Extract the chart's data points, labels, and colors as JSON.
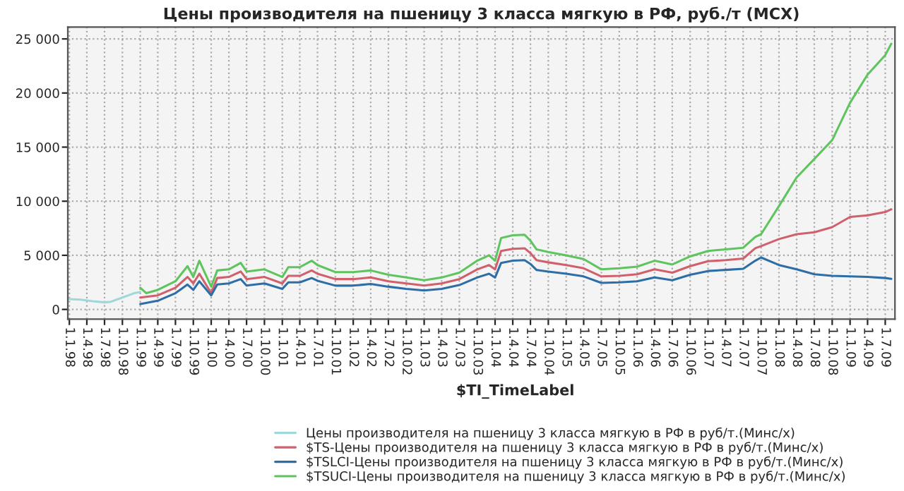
{
  "chart_data": {
    "type": "line",
    "title": "Цены производителя на пшеницу 3 класса мягкую в РФ, руб./т (МСХ)",
    "xlabel": "$TI_TimeLabel",
    "xlim": [
      "1997-12-24",
      "2009-08-20"
    ],
    "ylim": [
      -900,
      26100
    ],
    "yticks": [
      {
        "value": 0,
        "label": "0"
      },
      {
        "value": 5000,
        "label": "5 000"
      },
      {
        "value": 10000,
        "label": "10 000"
      },
      {
        "value": 15000,
        "label": "15 000"
      },
      {
        "value": 20000,
        "label": "20 000"
      },
      {
        "value": 25000,
        "label": "25 000"
      }
    ],
    "xticks": [
      {
        "value": "1998-01-01",
        "label": "1.1.98"
      },
      {
        "value": "1998-04-01",
        "label": "1.4.98"
      },
      {
        "value": "1998-07-01",
        "label": "1.7.98"
      },
      {
        "value": "1998-10-01",
        "label": "1.10.98"
      },
      {
        "value": "1999-01-01",
        "label": "1.1.99"
      },
      {
        "value": "1999-04-01",
        "label": "1.4.99"
      },
      {
        "value": "1999-07-01",
        "label": "1.7.99"
      },
      {
        "value": "1999-10-01",
        "label": "1.10.99"
      },
      {
        "value": "2000-01-01",
        "label": "1.1.00"
      },
      {
        "value": "2000-04-01",
        "label": "1.4.00"
      },
      {
        "value": "2000-07-01",
        "label": "1.7.00"
      },
      {
        "value": "2000-10-01",
        "label": "1.10.00"
      },
      {
        "value": "2001-01-01",
        "label": "1.1.01"
      },
      {
        "value": "2001-04-01",
        "label": "1.4.01"
      },
      {
        "value": "2001-07-01",
        "label": "1.7.01"
      },
      {
        "value": "2001-10-01",
        "label": "1.10.01"
      },
      {
        "value": "2002-01-01",
        "label": "1.1.02"
      },
      {
        "value": "2002-04-01",
        "label": "1.4.02"
      },
      {
        "value": "2002-07-01",
        "label": "1.7.02"
      },
      {
        "value": "2002-10-01",
        "label": "1.10.02"
      },
      {
        "value": "2003-01-01",
        "label": "1.1.03"
      },
      {
        "value": "2003-04-01",
        "label": "1.4.03"
      },
      {
        "value": "2003-07-01",
        "label": "1.7.03"
      },
      {
        "value": "2003-10-01",
        "label": "1.10.03"
      },
      {
        "value": "2004-01-01",
        "label": "1.1.04"
      },
      {
        "value": "2004-04-01",
        "label": "1.4.04"
      },
      {
        "value": "2004-07-01",
        "label": "1.7.04"
      },
      {
        "value": "2004-10-01",
        "label": "1.10.04"
      },
      {
        "value": "2005-01-01",
        "label": "1.1.05"
      },
      {
        "value": "2005-04-01",
        "label": "1.4.05"
      },
      {
        "value": "2005-07-01",
        "label": "1.7.05"
      },
      {
        "value": "2005-10-01",
        "label": "1.10.05"
      },
      {
        "value": "2006-01-01",
        "label": "1.1.06"
      },
      {
        "value": "2006-04-01",
        "label": "1.4.06"
      },
      {
        "value": "2006-07-01",
        "label": "1.7.06"
      },
      {
        "value": "2006-10-01",
        "label": "1.10.06"
      },
      {
        "value": "2007-01-01",
        "label": "1.1.07"
      },
      {
        "value": "2007-04-01",
        "label": "1.4.07"
      },
      {
        "value": "2007-07-01",
        "label": "1.7.07"
      },
      {
        "value": "2007-10-01",
        "label": "1.10.07"
      },
      {
        "value": "2008-01-01",
        "label": "1.1.08"
      },
      {
        "value": "2008-04-01",
        "label": "1.4.08"
      },
      {
        "value": "2008-07-01",
        "label": "1.7.08"
      },
      {
        "value": "2008-10-01",
        "label": "1.10.08"
      },
      {
        "value": "2009-01-01",
        "label": "1.1.09"
      },
      {
        "value": "2009-04-01",
        "label": "1.4.09"
      },
      {
        "value": "2009-07-01",
        "label": "1.7.09"
      }
    ],
    "grid": true,
    "legend": "bottom",
    "line_style": "solid",
    "series": [
      {
        "name": "Цены производителя на пшеницу 3 класса мягкую в РФ в руб/т.(Минс/х)",
        "color": "#9fd8d8",
        "x": [
          "1998-01",
          "1998-03",
          "1998-05",
          "1998-07",
          "1998-08",
          "1998-10",
          "1998-12",
          "1999-01"
        ],
        "values": [
          950,
          900,
          750,
          650,
          700,
          1100,
          1500,
          1600
        ]
      },
      {
        "name": "$TS-Цены производителя на пшеницу 3 класса мягкую в РФ в руб/т.(Минс/х)",
        "color": "#d0606c",
        "x": [
          "1999-01",
          "1999-04",
          "1999-07",
          "1999-09",
          "1999-10",
          "1999-11",
          "2000-01",
          "2000-02",
          "2000-04",
          "2000-06",
          "2000-07",
          "2000-10",
          "2001-01",
          "2001-02",
          "2001-04",
          "2001-06",
          "2001-07",
          "2001-10",
          "2002-01",
          "2002-04",
          "2002-07",
          "2002-10",
          "2003-01",
          "2003-04",
          "2003-07",
          "2003-10",
          "2003-12",
          "2004-01",
          "2004-02",
          "2004-04",
          "2004-06",
          "2004-07",
          "2004-08",
          "2004-10",
          "2005-01",
          "2005-04",
          "2005-07",
          "2005-10",
          "2006-01",
          "2006-04",
          "2006-07",
          "2006-10",
          "2007-01",
          "2007-04",
          "2007-07",
          "2007-09",
          "2007-10",
          "2008-01",
          "2008-04",
          "2008-07",
          "2008-10",
          "2009-01",
          "2009-04",
          "2009-07",
          "2009-08"
        ],
        "values": [
          1100,
          1300,
          2000,
          3000,
          2400,
          3300,
          1500,
          2900,
          3000,
          3500,
          2800,
          3000,
          2400,
          3100,
          3100,
          3600,
          3300,
          2800,
          2800,
          2950,
          2600,
          2400,
          2200,
          2400,
          2800,
          3700,
          4100,
          3700,
          5400,
          5600,
          5650,
          5200,
          4550,
          4350,
          4100,
          3800,
          3050,
          3100,
          3250,
          3700,
          3400,
          4000,
          4450,
          4550,
          4700,
          5650,
          5850,
          6500,
          6950,
          7130,
          7600,
          8550,
          8700,
          9000,
          9250
        ]
      },
      {
        "name": "$TSLCI-Цены производителя на пшеницу 3 класса мягкую в РФ в руб/т.(Минс/х)",
        "color": "#2e6ea6",
        "x": [
          "1999-01",
          "1999-04",
          "1999-07",
          "1999-09",
          "1999-10",
          "1999-11",
          "2000-01",
          "2000-02",
          "2000-04",
          "2000-06",
          "2000-07",
          "2000-10",
          "2001-01",
          "2001-02",
          "2001-04",
          "2001-06",
          "2001-07",
          "2001-10",
          "2002-01",
          "2002-04",
          "2002-07",
          "2002-10",
          "2003-01",
          "2003-04",
          "2003-07",
          "2003-10",
          "2003-12",
          "2004-01",
          "2004-02",
          "2004-04",
          "2004-06",
          "2004-07",
          "2004-08",
          "2004-10",
          "2005-01",
          "2005-04",
          "2005-07",
          "2005-10",
          "2006-01",
          "2006-04",
          "2006-07",
          "2006-10",
          "2007-01",
          "2007-04",
          "2007-07",
          "2007-09",
          "2007-10",
          "2008-01",
          "2008-04",
          "2008-07",
          "2008-10",
          "2009-01",
          "2009-04",
          "2009-07",
          "2009-08"
        ],
        "values": [
          500,
          800,
          1500,
          2300,
          1800,
          2600,
          1300,
          2300,
          2400,
          2800,
          2200,
          2400,
          1900,
          2500,
          2500,
          2900,
          2650,
          2200,
          2200,
          2350,
          2100,
          1900,
          1750,
          1900,
          2250,
          2950,
          3300,
          2950,
          4300,
          4500,
          4550,
          4200,
          3650,
          3500,
          3300,
          3050,
          2450,
          2500,
          2600,
          2950,
          2700,
          3200,
          3550,
          3650,
          3750,
          4500,
          4800,
          4100,
          3700,
          3250,
          3100,
          3050,
          3000,
          2900,
          2830
        ]
      },
      {
        "name": "$TSUCI-Цены производителя на пшеницу 3 класса мягкую в РФ в руб/т.(Минс/х)",
        "color": "#5ec45e",
        "x": [
          "1999-01",
          "1999-02",
          "1999-04",
          "1999-07",
          "1999-09",
          "1999-10",
          "1999-11",
          "2000-01",
          "2000-02",
          "2000-04",
          "2000-06",
          "2000-07",
          "2000-10",
          "2001-01",
          "2001-02",
          "2001-04",
          "2001-06",
          "2001-07",
          "2001-10",
          "2002-01",
          "2002-04",
          "2002-07",
          "2002-10",
          "2003-01",
          "2003-04",
          "2003-07",
          "2003-10",
          "2003-12",
          "2004-01",
          "2004-02",
          "2004-04",
          "2004-06",
          "2004-07",
          "2004-08",
          "2004-10",
          "2005-01",
          "2005-04",
          "2005-07",
          "2005-10",
          "2006-01",
          "2006-04",
          "2006-07",
          "2006-10",
          "2007-01",
          "2007-04",
          "2007-07",
          "2007-09",
          "2007-10",
          "2008-01",
          "2008-04",
          "2008-07",
          "2008-10",
          "2009-01",
          "2009-04",
          "2009-07",
          "2009-08"
        ],
        "values": [
          2000,
          1500,
          1800,
          2600,
          4000,
          3000,
          4500,
          2100,
          3600,
          3700,
          4300,
          3500,
          3700,
          3000,
          3900,
          3900,
          4500,
          4100,
          3450,
          3450,
          3600,
          3200,
          2950,
          2700,
          2950,
          3400,
          4500,
          5000,
          4500,
          6600,
          6850,
          6900,
          6350,
          5550,
          5300,
          5000,
          4650,
          3700,
          3800,
          3950,
          4500,
          4150,
          4900,
          5400,
          5550,
          5700,
          6700,
          6950,
          9550,
          12200,
          13900,
          15650,
          19100,
          21700,
          23500,
          24550
        ]
      }
    ]
  }
}
